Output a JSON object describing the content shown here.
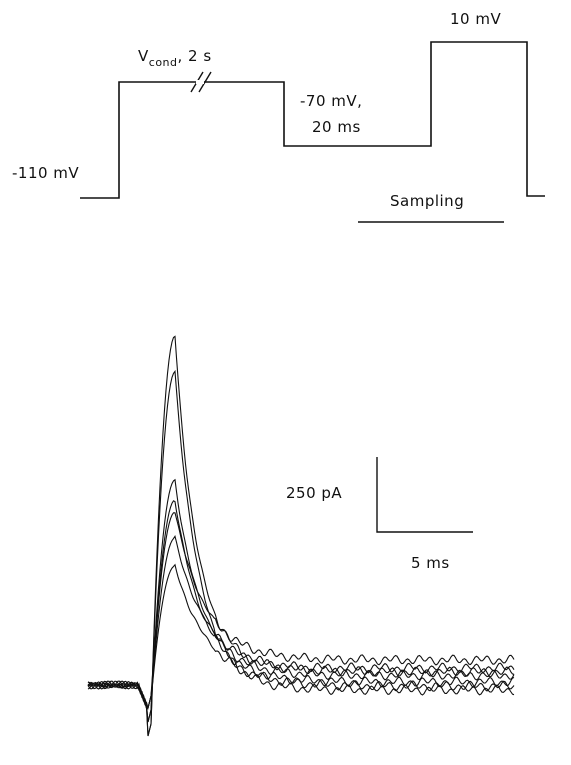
{
  "protocol": {
    "holding_label": "-110 mV",
    "cond_label_main": "V",
    "cond_label_sub": "cond",
    "cond_label_rest": ", 2 s",
    "step_label_line1": "-70 mV,",
    "step_label_line2": "20 ms",
    "test_label": "10 mV",
    "sampling_label": "Sampling"
  },
  "scale_bar": {
    "current_label": "250 pA",
    "time_label": "5 ms"
  }
}
